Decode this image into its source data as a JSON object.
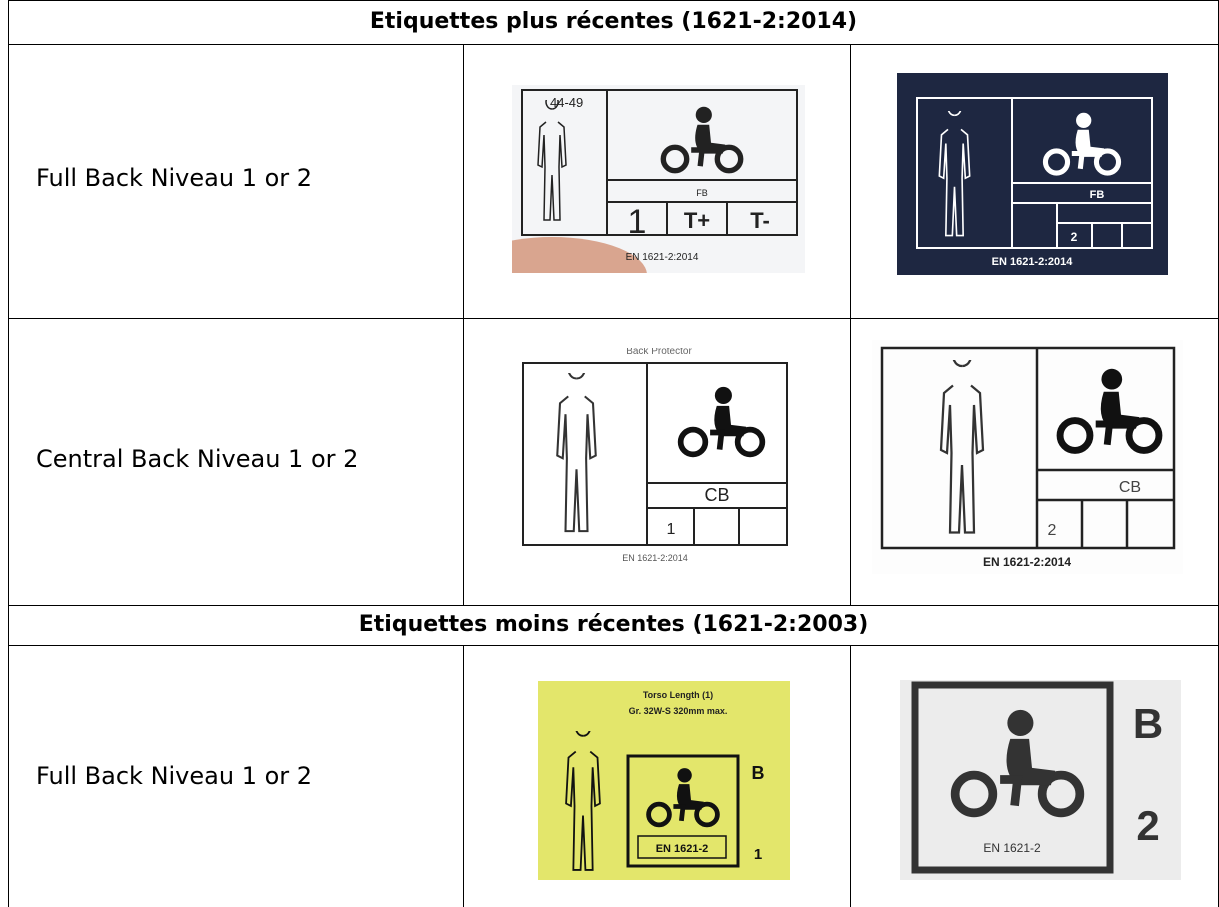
{
  "table": {
    "sections": [
      {
        "title": "Etiquettes plus récentes (1621-2:2014)",
        "rows": [
          {
            "label": "Full Back Niveau 1 or 2",
            "images": [
              {
                "texts": [
                  "44-49",
                  "FB",
                  "1",
                  "T+",
                  "T-",
                  "EN 1621-2:2014"
                ]
              },
              {
                "texts": [
                  "FB",
                  "2",
                  "EN 1621-2:2014"
                ]
              }
            ]
          },
          {
            "label": "Central Back Niveau 1 or 2",
            "images": [
              {
                "texts": [
                  "Back Protector",
                  "CB",
                  "1",
                  "EN 1621-2:2014"
                ]
              },
              {
                "texts": [
                  "CB",
                  "2",
                  "EN 1621-2:2014"
                ]
              }
            ]
          }
        ]
      },
      {
        "title": "Etiquettes moins récentes (1621-2:2003)",
        "rows": [
          {
            "label": "Full Back Niveau 1 or 2",
            "images": [
              {
                "texts": [
                  "Torso Length (1)",
                  "Gr. 32W-S 320mm max.",
                  "B",
                  "EN 1621-2",
                  "1"
                ]
              },
              {
                "texts": [
                  "B",
                  "2",
                  "EN 1621-2"
                ]
              }
            ]
          }
        ]
      }
    ]
  }
}
